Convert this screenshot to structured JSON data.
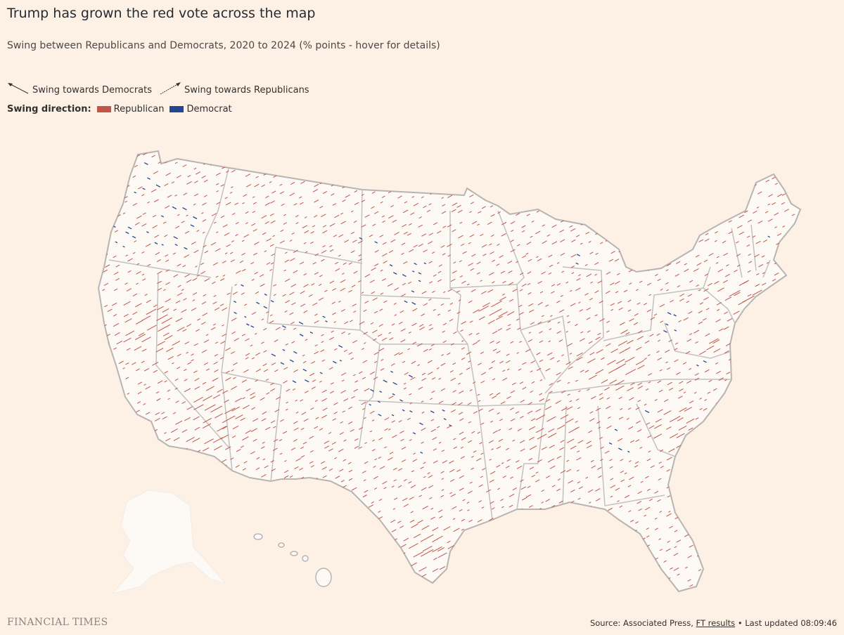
{
  "header": {
    "title": "Trump has grown the red vote across the map",
    "subtitle": "Swing between Republicans and Democrats, 2020 to 2024 (% points - hover for details)"
  },
  "key": {
    "dem_arrow_label": "Swing towards Democrats",
    "rep_arrow_label": "Swing towards Republicans"
  },
  "legend": {
    "label": "Swing direction:",
    "items": [
      {
        "name": "Republican",
        "color": "#c0564a"
      },
      {
        "name": "Democrat",
        "color": "#23468f"
      }
    ]
  },
  "colors": {
    "background": "#fdf1e6",
    "land": "#fdf9f5",
    "border": "#b8b4b2",
    "republican": "#c0564a",
    "democrat": "#23468f"
  },
  "footer": {
    "logo": "FINANCIAL TIMES",
    "source_prefix": "Source: Associated Press, ",
    "source_link": "FT results",
    "source_suffix": " • Last updated 08:09:46"
  }
}
